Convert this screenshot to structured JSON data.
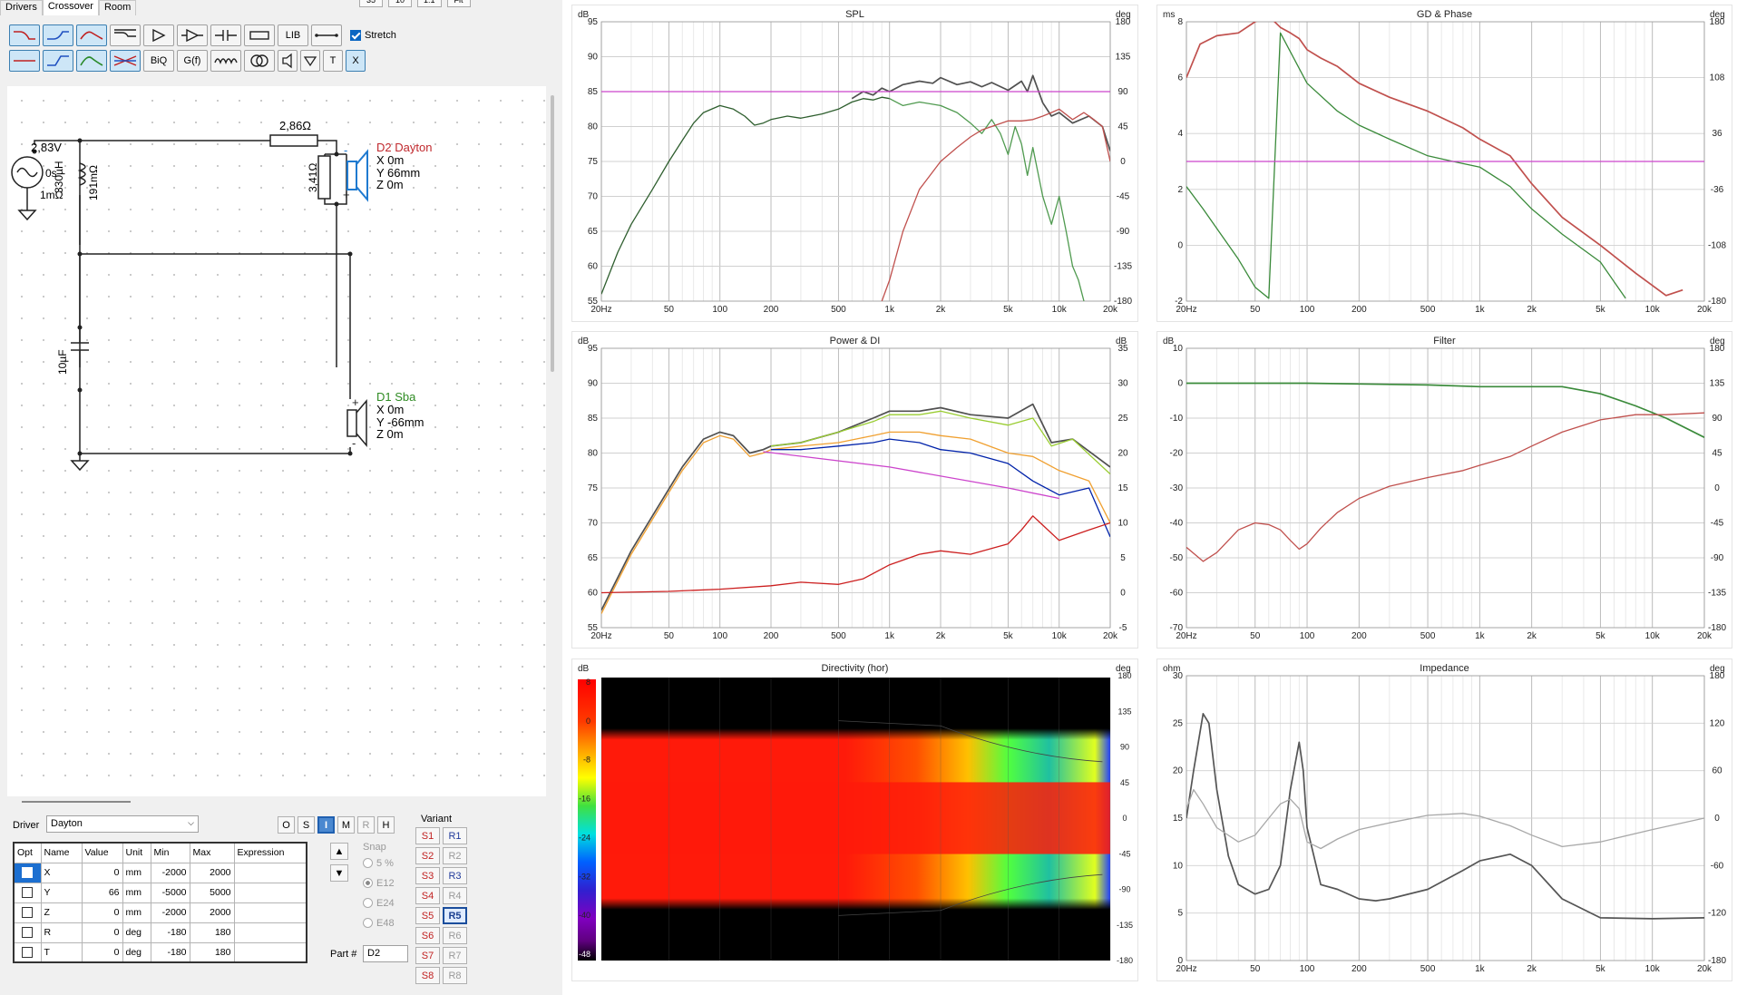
{
  "tabs": [
    "Drivers",
    "Crossover",
    "Room"
  ],
  "top_buttons": [
    "35",
    "10",
    "1:1",
    "Fit"
  ],
  "toolbar": {
    "row1": [
      "highpass-1",
      "lowpass-1",
      "bandpass-1",
      "shelf-1",
      "buffer",
      "amp",
      "capacitor",
      "resistor",
      "LIB",
      "wire"
    ],
    "row2": [
      "highpass-2",
      "lowpass-2",
      "bandpass-2",
      "allpass",
      "BiQ",
      "G(f)",
      "inductor",
      "transformer",
      "speaker",
      "ground",
      "T",
      "X"
    ],
    "stretch_label": "Stretch",
    "stretch_checked": true
  },
  "schematic": {
    "source": {
      "voltage": "2,83V",
      "delay": "0s",
      "resistance": "1mΩ"
    },
    "inductor": {
      "value": "330µH",
      "dcr": "191mΩ"
    },
    "series_res": "2,86Ω",
    "shunt_res": "3,41Ω",
    "capacitor": "10µF",
    "driver_d2": {
      "name": "D2 Dayton",
      "x": "X 0m",
      "y": "Y 66mm",
      "z": "Z 0m",
      "color": "#c0282d"
    },
    "driver_d1": {
      "name": "D1 Sba",
      "x": "X 0m",
      "y": "Y -66mm",
      "z": "Z 0m",
      "color": "#2e8b22"
    }
  },
  "driver_panel": {
    "label": "Driver",
    "selected": "Dayton",
    "mode_buttons": [
      "O",
      "S",
      "I",
      "M",
      "R",
      "H"
    ],
    "active_mode": "I",
    "columns": [
      "Opt",
      "Name",
      "Value",
      "Unit",
      "Min",
      "Max",
      "Expression"
    ],
    "rows": [
      {
        "name": "X",
        "value": "0",
        "unit": "mm",
        "min": "-2000",
        "max": "2000"
      },
      {
        "name": "Y",
        "value": "66",
        "unit": "mm",
        "min": "-5000",
        "max": "5000"
      },
      {
        "name": "Z",
        "value": "0",
        "unit": "mm",
        "min": "-2000",
        "max": "2000"
      },
      {
        "name": "R",
        "value": "0",
        "unit": "deg",
        "min": "-180",
        "max": "180"
      },
      {
        "name": "T",
        "value": "0",
        "unit": "deg",
        "min": "-180",
        "max": "180"
      }
    ],
    "snap_label": "Snap",
    "snap_options": [
      "5 %",
      "E12",
      "E24",
      "E48"
    ],
    "snap_selected": "E12",
    "part_label": "Part #",
    "part_value": "D2",
    "variant_label": "Variant",
    "variants_s": [
      "S1",
      "S2",
      "S3",
      "S4",
      "S5",
      "S6",
      "S7",
      "S8"
    ],
    "variants_r": [
      "R1",
      "R2",
      "R3",
      "R4",
      "R5",
      "R6",
      "R7",
      "R8"
    ],
    "variant_selected": "R5"
  },
  "chart_data": [
    {
      "type": "line",
      "title": "SPL",
      "ylabel": "dB",
      "y2label": "deg",
      "xscale": "log",
      "xlim": [
        20,
        20000
      ],
      "xticks": [
        "20Hz",
        "50",
        "100",
        "200",
        "500",
        "1k",
        "2k",
        "5k",
        "10k",
        "20k"
      ],
      "ylim": [
        55,
        95
      ],
      "yticks": [
        "55",
        "60",
        "65",
        "70",
        "75",
        "80",
        "85",
        "90",
        "95"
      ],
      "y2ticks": [
        "-180",
        "-135",
        "-90",
        "-45",
        "0",
        "45",
        "90",
        "135",
        "180"
      ],
      "series": [
        {
          "color": "#505050",
          "x": [
            600,
            700,
            800,
            900,
            1000,
            1200,
            1500,
            1800,
            2000,
            2500,
            3000,
            3500,
            4000,
            5000,
            6000,
            6500,
            7000,
            8000,
            9000,
            10000,
            12000,
            15000,
            18000,
            20000
          ],
          "y": [
            84,
            85,
            84.5,
            85.5,
            85,
            86,
            86.5,
            86.2,
            87,
            86,
            86.4,
            85.7,
            86.3,
            85.2,
            86.5,
            85,
            87.3,
            83.4,
            81.5,
            82,
            80.5,
            81.5,
            80,
            76.5
          ]
        },
        {
          "color": "#2e5e2e",
          "x": [
            20,
            25,
            30,
            40,
            50,
            60,
            70,
            80,
            100,
            120,
            140,
            160,
            180,
            200,
            250,
            300,
            400,
            500,
            600,
            700,
            800,
            900,
            1000
          ],
          "y": [
            56,
            62,
            66,
            71,
            75,
            78,
            80.5,
            82,
            83,
            82.5,
            81.5,
            80.2,
            80.5,
            81,
            81.5,
            81.2,
            81.8,
            82.5,
            83.5,
            84,
            83.8,
            84.2,
            84
          ]
        },
        {
          "color": "#4f9a4f",
          "x": [
            1000,
            1200,
            1500,
            2000,
            2500,
            3000,
            3500,
            4000,
            4500,
            5000,
            5500,
            6000,
            6500,
            7000,
            8000,
            9000,
            10000,
            11000,
            12000,
            13000,
            14000
          ],
          "y": [
            84,
            83,
            83.5,
            83,
            82,
            80.5,
            79,
            81,
            79,
            76,
            80,
            77.5,
            73,
            77,
            70,
            66,
            70,
            65,
            60,
            58,
            55
          ]
        },
        {
          "color": "#c0504d",
          "x": [
            900,
            1000,
            1200,
            1500,
            2000,
            2500,
            3000,
            3500,
            4000,
            5000,
            6000,
            7000,
            8000,
            9000,
            10000,
            12000,
            14000,
            16000,
            18000,
            20000
          ],
          "y": [
            55,
            58,
            65,
            71,
            75,
            77,
            78.5,
            79.5,
            80,
            80.8,
            80.8,
            81,
            81.5,
            82,
            82.5,
            81,
            82,
            81,
            80,
            75
          ]
        },
        {
          "color": "#cc44cc",
          "x": [
            20,
            20000
          ],
          "y": [
            85,
            85
          ]
        }
      ]
    },
    {
      "type": "line",
      "title": "GD & Phase",
      "ylabel": "ms",
      "y2label": "deg",
      "xscale": "log",
      "xlim": [
        20,
        20000
      ],
      "xticks": [
        "20Hz",
        "50",
        "100",
        "200",
        "500",
        "1k",
        "2k",
        "5k",
        "10k",
        "20k"
      ],
      "ylim": [
        -2,
        8
      ],
      "yticks": [
        "-2",
        "0",
        "2",
        "4",
        "6",
        "8"
      ],
      "y2ticks": [
        "-180",
        "-108",
        "-36",
        "36",
        "108",
        "180"
      ],
      "series": [
        {
          "color": "#c0504d",
          "x": [
            20,
            24,
            30,
            40,
            50,
            60,
            70,
            80,
            90,
            100,
            120,
            150,
            200,
            300,
            500,
            800,
            1000,
            1500,
            2000,
            3000,
            5000,
            8000,
            12000,
            15000
          ],
          "y": [
            6,
            7.2,
            7.5,
            7.6,
            8,
            8.2,
            7.8,
            7.6,
            7.4,
            7,
            6.7,
            6.4,
            5.8,
            5.3,
            4.8,
            4.2,
            3.8,
            3.2,
            2.2,
            1,
            0,
            -1,
            -1.8,
            -1.6
          ]
        },
        {
          "color": "#3a8a3a",
          "x": [
            20,
            25,
            30,
            40,
            50,
            60,
            70,
            100,
            150,
            200,
            300,
            500,
            700,
            1000,
            1500,
            2000,
            3000,
            5000,
            7000
          ],
          "y": [
            2.1,
            1.3,
            0.6,
            -0.5,
            -1.5,
            -1.9,
            7.6,
            5.8,
            4.8,
            4.3,
            3.8,
            3.2,
            3,
            2.8,
            2.1,
            1.3,
            0.4,
            -0.6,
            -1.9
          ]
        },
        {
          "color": "#cc44cc",
          "x": [
            20,
            20000
          ],
          "y": [
            3,
            3
          ]
        }
      ]
    },
    {
      "type": "line",
      "title": "Power & DI",
      "ylabel": "dB",
      "y2label": "dB",
      "xscale": "log",
      "xlim": [
        20,
        20000
      ],
      "xticks": [
        "20Hz",
        "50",
        "100",
        "200",
        "500",
        "1k",
        "2k",
        "5k",
        "10k",
        "20k"
      ],
      "ylim": [
        55,
        95
      ],
      "yticks": [
        "55",
        "60",
        "65",
        "70",
        "75",
        "80",
        "85",
        "90",
        "95"
      ],
      "y2ticks": [
        "-5",
        "0",
        "5",
        "10",
        "15",
        "20",
        "25",
        "30",
        "35"
      ],
      "series": [
        {
          "color": "#505050",
          "x": [
            20,
            30,
            40,
            60,
            80,
            100,
            120,
            150,
            180,
            200,
            300,
            500,
            800,
            1000,
            1500,
            2000,
            3000,
            5000,
            7000,
            9000,
            12000,
            20000
          ],
          "y": [
            57.5,
            66,
            71,
            78,
            82,
            83,
            82.5,
            80,
            80.5,
            81,
            81.5,
            83,
            85,
            86,
            86,
            86.5,
            85.5,
            85,
            87,
            81.5,
            82,
            78
          ]
        },
        {
          "color": "#9acd32",
          "x": [
            200,
            300,
            500,
            800,
            1000,
            1500,
            2000,
            3000,
            5000,
            7000,
            9000,
            12000,
            20000
          ],
          "y": [
            81,
            81.5,
            83,
            84.5,
            85.5,
            85.5,
            86,
            85,
            84,
            85,
            81,
            82,
            77
          ]
        },
        {
          "color": "#f0a030",
          "x": [
            20,
            30,
            40,
            60,
            80,
            100,
            120,
            150,
            180,
            200,
            300,
            500,
            800,
            1000,
            1500,
            2000,
            3000,
            5000,
            7000,
            10000,
            15000,
            20000
          ],
          "y": [
            57,
            65.5,
            70.5,
            77.5,
            81.5,
            82.5,
            82,
            79.5,
            80,
            80.5,
            81,
            81.5,
            82.5,
            83,
            83,
            82.5,
            82,
            80,
            79.5,
            77.5,
            76,
            70
          ]
        },
        {
          "color": "#0022aa",
          "x": [
            200,
            300,
            500,
            800,
            1000,
            1500,
            2000,
            3000,
            5000,
            7000,
            10000,
            15000,
            20000
          ],
          "y": [
            80.5,
            80.5,
            81,
            81.5,
            82,
            81.5,
            80.5,
            80,
            78.5,
            76,
            74,
            75,
            68
          ]
        },
        {
          "color": "#cc44cc",
          "x": [
            180,
            1000,
            5000,
            10000
          ],
          "y": [
            80.2,
            78,
            75,
            73.5
          ]
        },
        {
          "color": "#cc1f1f",
          "x": [
            20,
            50,
            100,
            200,
            300,
            500,
            700,
            1000,
            1500,
            2000,
            3000,
            5000,
            6000,
            7000,
            10000,
            15000,
            20000
          ],
          "y": [
            60,
            60.2,
            60.5,
            61,
            61.5,
            61.2,
            62,
            64,
            65.5,
            66,
            65.5,
            67,
            69,
            71,
            67.5,
            69,
            70
          ]
        }
      ]
    },
    {
      "type": "line",
      "title": "Filter",
      "ylabel": "dB",
      "y2label": "deg",
      "xscale": "log",
      "xlim": [
        20,
        20000
      ],
      "xticks": [
        "20Hz",
        "50",
        "100",
        "200",
        "500",
        "1k",
        "2k",
        "5k",
        "10k",
        "20k"
      ],
      "ylim": [
        -70,
        10
      ],
      "yticks": [
        "-70",
        "-60",
        "-50",
        "-40",
        "-30",
        "-20",
        "-10",
        "0",
        "10"
      ],
      "y2ticks": [
        "-180",
        "-135",
        "-90",
        "-45",
        "0",
        "45",
        "90",
        "135",
        "180"
      ],
      "series": [
        {
          "color": "#3a8a3a",
          "x": [
            20,
            100,
            500,
            1000,
            2000,
            3000,
            5000,
            8000,
            12000,
            20000
          ],
          "y": [
            0,
            0,
            -0.5,
            -1,
            -1,
            -1,
            -3,
            -6.5,
            -10,
            -15.5
          ]
        },
        {
          "color": "#c0504d",
          "x": [
            20,
            25,
            30,
            40,
            50,
            60,
            70,
            80,
            90,
            100,
            120,
            150,
            200,
            300,
            500,
            800,
            1000,
            1500,
            2000,
            3000,
            5000,
            8000,
            12000,
            20000
          ],
          "y": [
            -47,
            -51,
            -48.5,
            -42,
            -40,
            -40.5,
            -42,
            -45,
            -47.5,
            -46,
            -41.5,
            -37,
            -33,
            -29.5,
            -27,
            -25,
            -23.5,
            -21,
            -18,
            -14,
            -10.5,
            -9,
            -9,
            -8.5
          ]
        }
      ]
    },
    {
      "type": "heatmap",
      "title": "Directivity (hor)",
      "ylabel": "dB",
      "y2label": "deg",
      "xscale": "log",
      "xlim": [
        20,
        20000
      ],
      "xticks": [
        "20Hz",
        "50",
        "100",
        "200",
        "500",
        "1k",
        "2k",
        "5k",
        "10k",
        "20k"
      ],
      "colorbar_ticks": [
        "8",
        "0",
        "-8",
        "-16",
        "-24",
        "-32",
        "-40",
        "-48"
      ],
      "y2ticks": [
        "-180",
        "-135",
        "-90",
        "-45",
        "0",
        "45",
        "90",
        "135",
        "180"
      ]
    },
    {
      "type": "line",
      "title": "Impedance",
      "ylabel": "ohm",
      "y2label": "deg",
      "xscale": "log",
      "xlim": [
        20,
        20000
      ],
      "xticks": [
        "20Hz",
        "50",
        "100",
        "200",
        "500",
        "1k",
        "2k",
        "5k",
        "10k",
        "20k"
      ],
      "ylim": [
        0,
        30
      ],
      "yticks": [
        "0",
        "5",
        "10",
        "15",
        "20",
        "25",
        "30"
      ],
      "y2ticks": [
        "-180",
        "-120",
        "-60",
        "0",
        "60",
        "120",
        "180"
      ],
      "series": [
        {
          "color": "#555555",
          "x": [
            20,
            22,
            25,
            27,
            30,
            35,
            40,
            50,
            60,
            70,
            80,
            90,
            95,
            100,
            120,
            150,
            200,
            250,
            300,
            500,
            800,
            1000,
            1500,
            2000,
            3000,
            5000,
            10000,
            20000
          ],
          "y": [
            15,
            20,
            26,
            25,
            18,
            11,
            8,
            7,
            7.5,
            10,
            18,
            23,
            20,
            14,
            8,
            7.5,
            6.5,
            6.3,
            6.5,
            7.5,
            9.5,
            10.5,
            11.2,
            10,
            6.5,
            4.5,
            4.4,
            4.5
          ]
        },
        {
          "color": "#a8a8a8",
          "x": [
            20,
            22,
            25,
            30,
            40,
            50,
            60,
            70,
            80,
            90,
            100,
            120,
            150,
            200,
            300,
            500,
            800,
            1000,
            1500,
            2000,
            3000,
            5000,
            10000,
            20000
          ],
          "y": [
            16,
            18,
            16.5,
            14,
            12.5,
            13.2,
            15,
            16.5,
            17,
            16,
            12.5,
            11.8,
            12.8,
            13.8,
            14.5,
            15.3,
            15.5,
            15.2,
            14.2,
            13.2,
            12,
            12.5,
            13.8,
            15
          ]
        }
      ]
    }
  ]
}
